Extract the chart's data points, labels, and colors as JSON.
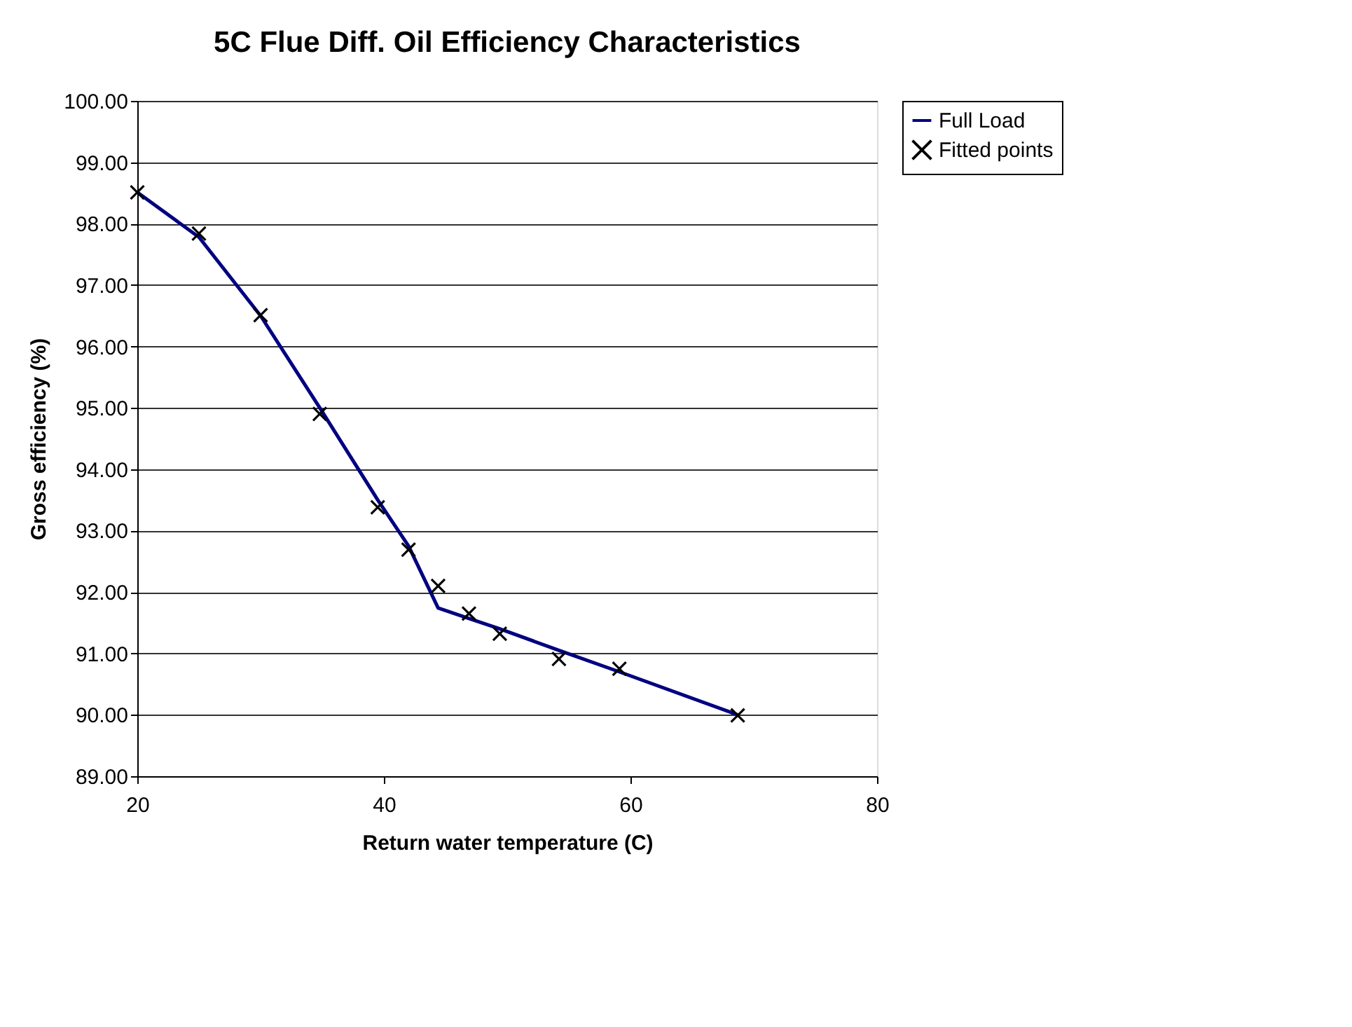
{
  "chart_data": {
    "type": "line",
    "title": "5C Flue Diff. Oil Efficiency Characteristics",
    "xlabel": "Return water temperature (C)",
    "ylabel": "Gross efficiency (%)",
    "series": [
      {
        "name": "Full Load",
        "color": "#000080",
        "line_style": "solid",
        "x": [
          20,
          25,
          30,
          34.8,
          39.5,
          42,
          44.4,
          46.9,
          49.4,
          54.2,
          59.1,
          68.7
        ],
        "values": [
          98.51,
          97.78,
          96.5,
          95.0,
          93.5,
          92.75,
          91.74,
          91.57,
          91.4,
          91.05,
          90.7,
          90.0
        ]
      },
      {
        "name": "Fitted points",
        "type": "scatter",
        "color": "#000000",
        "marker": "cross",
        "x": [
          20,
          25,
          30,
          34.8,
          39.5,
          42,
          44.4,
          46.9,
          49.4,
          54.2,
          59.1,
          68.7
        ],
        "values": [
          98.51,
          97.84,
          96.51,
          94.9,
          93.38,
          92.69,
          92.1,
          91.65,
          91.32,
          90.91,
          90.75,
          89.99
        ]
      }
    ],
    "xlim": [
      20,
      80
    ],
    "xticks": [
      20,
      40,
      60,
      80
    ],
    "ylim": [
      89,
      100
    ],
    "yticks": [
      {
        "value": 89,
        "label": "89.00"
      },
      {
        "value": 90,
        "label": "90.00"
      },
      {
        "value": 91,
        "label": "91.00"
      },
      {
        "value": 92,
        "label": "92.00"
      },
      {
        "value": 93,
        "label": "93.00"
      },
      {
        "value": 94,
        "label": "94.00"
      },
      {
        "value": 95,
        "label": "95.00"
      },
      {
        "value": 96,
        "label": "96.00"
      },
      {
        "value": 97,
        "label": "97.00"
      },
      {
        "value": 98,
        "label": "98.00"
      },
      {
        "value": 99,
        "label": "99.00"
      },
      {
        "value": 100,
        "label": "100.00"
      }
    ],
    "grid": "y",
    "legend": "right"
  }
}
